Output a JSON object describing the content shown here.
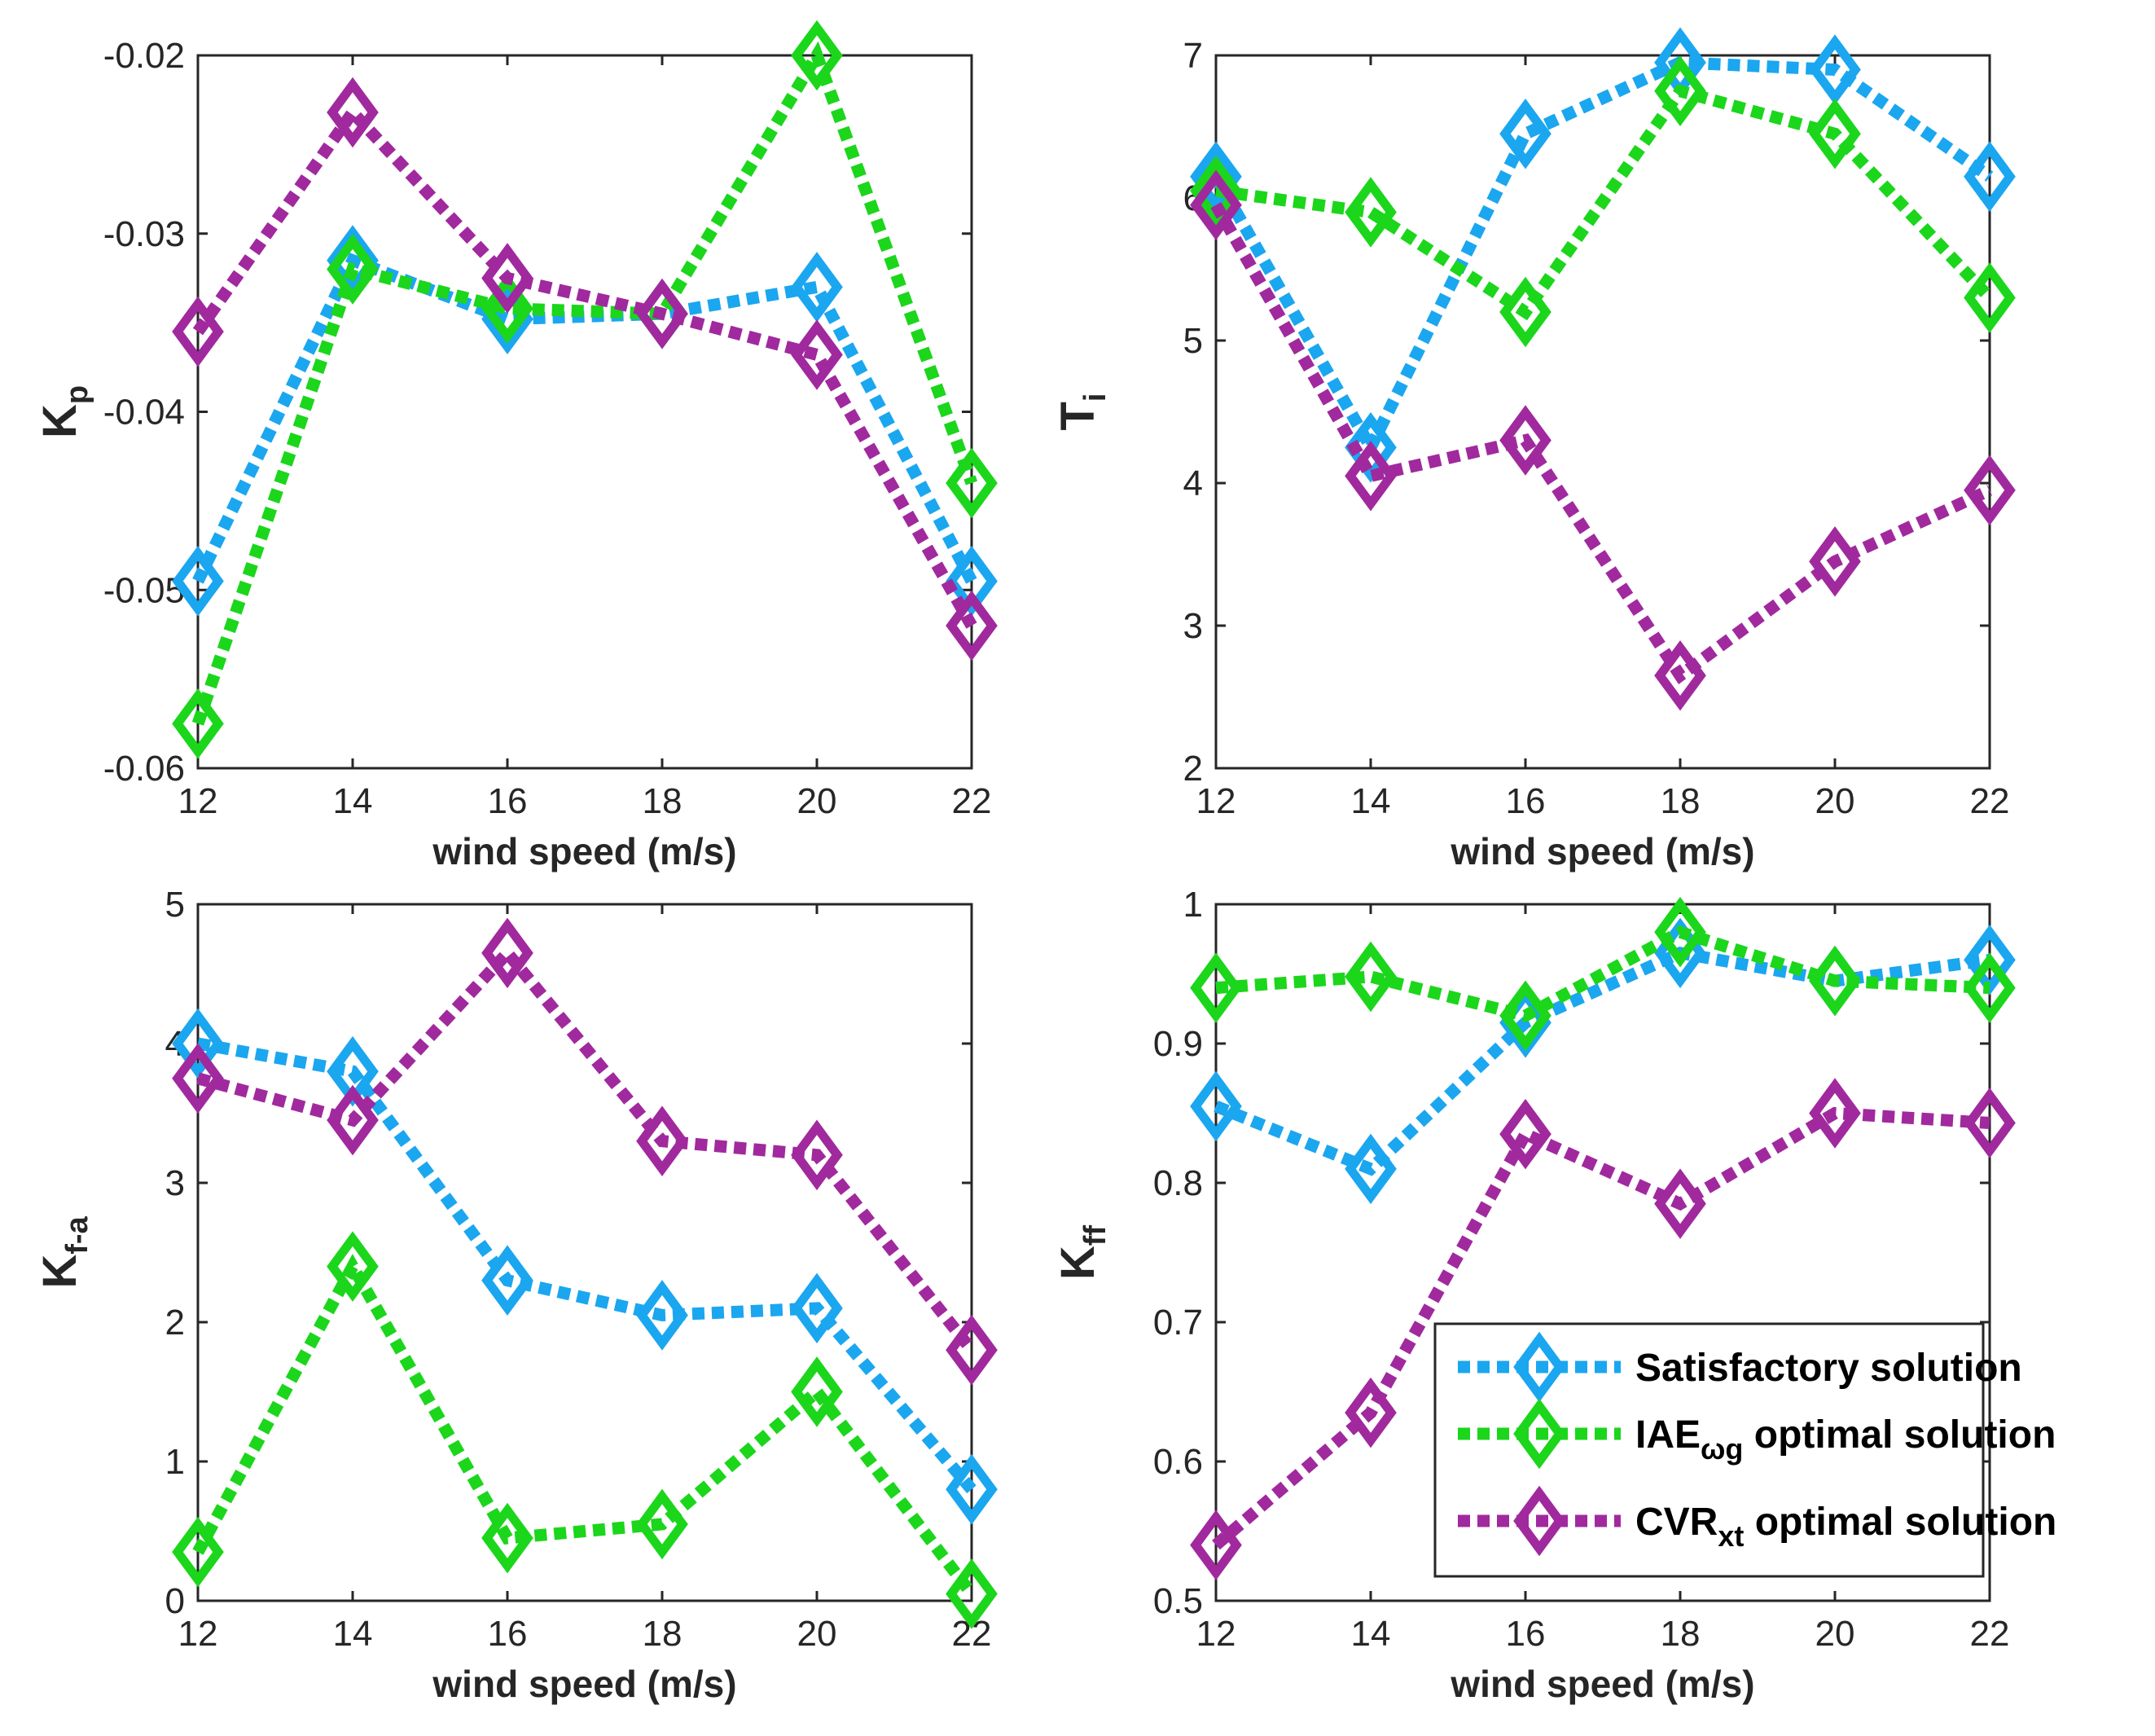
{
  "colors": {
    "satisfactory": "#1ba6f0",
    "iae": "#1bd61b",
    "cvr": "#a1299e",
    "axis": "#262626"
  },
  "legend": {
    "placement": "bottom-right of panel 4",
    "entries": [
      {
        "series": "satisfactory",
        "label": "Satisfactory solution",
        "main": "Satisfactory solution",
        "sub": "",
        "rest": ""
      },
      {
        "series": "iae",
        "label": "IAEωg optimal solution",
        "main": "IAE",
        "sub": "ωg",
        "rest": " optimal solution"
      },
      {
        "series": "cvr",
        "label": "CVRxt optimal solution",
        "main": "CVR",
        "sub": "xt",
        "rest": " optimal solution"
      }
    ]
  },
  "chart_data": [
    {
      "type": "line",
      "xlabel": "wind speed (m/s)",
      "ylabel": {
        "main": "K",
        "sub": "p"
      },
      "x": [
        12,
        14,
        16,
        18,
        20,
        22
      ],
      "xlim": [
        12,
        22
      ],
      "ylim": [
        -0.06,
        -0.02
      ],
      "xticks": [
        12,
        14,
        16,
        18,
        20,
        22
      ],
      "yticks": [
        -0.06,
        -0.05,
        -0.04,
        -0.03,
        -0.02
      ],
      "yticklabels": [
        "-0.06",
        "-0.05",
        "-0.04",
        "-0.03",
        "-0.02"
      ],
      "series": [
        {
          "key": "satisfactory",
          "name": "Satisfactory solution",
          "values": [
            -0.0495,
            -0.0315,
            -0.0348,
            -0.0345,
            -0.033,
            -0.0495
          ]
        },
        {
          "key": "iae",
          "name": "IAEωg optimal solution",
          "values": [
            -0.0575,
            -0.032,
            -0.0342,
            -0.0345,
            -0.02,
            -0.044
          ]
        },
        {
          "key": "cvr",
          "name": "CVRxt optimal solution",
          "values": [
            -0.0355,
            -0.0232,
            -0.0325,
            -0.0345,
            -0.0368,
            -0.052
          ]
        }
      ]
    },
    {
      "type": "line",
      "xlabel": "wind speed (m/s)",
      "ylabel": {
        "main": "T",
        "sub": "i"
      },
      "x": [
        12,
        14,
        16,
        18,
        20,
        22
      ],
      "xlim": [
        12,
        22
      ],
      "ylim": [
        2,
        7
      ],
      "xticks": [
        12,
        14,
        16,
        18,
        20,
        22
      ],
      "yticks": [
        2,
        3,
        4,
        5,
        6,
        7
      ],
      "yticklabels": [
        "2",
        "3",
        "4",
        "5",
        "6",
        "7"
      ],
      "series": [
        {
          "key": "satisfactory",
          "name": "Satisfactory solution",
          "values": [
            6.15,
            4.25,
            6.45,
            6.95,
            6.9,
            6.15
          ]
        },
        {
          "key": "iae",
          "name": "IAEωg optimal solution",
          "values": [
            6.05,
            5.9,
            5.2,
            6.75,
            6.45,
            5.3
          ]
        },
        {
          "key": "cvr",
          "name": "CVRxt optimal solution",
          "values": [
            5.95,
            4.05,
            4.3,
            2.65,
            3.45,
            3.95
          ]
        }
      ]
    },
    {
      "type": "line",
      "xlabel": "wind speed (m/s)",
      "ylabel": {
        "main": "K",
        "sub": "f-a"
      },
      "x": [
        12,
        14,
        16,
        18,
        20,
        22
      ],
      "xlim": [
        12,
        22
      ],
      "ylim": [
        0,
        5
      ],
      "xticks": [
        12,
        14,
        16,
        18,
        20,
        22
      ],
      "yticks": [
        0,
        1,
        2,
        3,
        4,
        5
      ],
      "yticklabels": [
        "0",
        "1",
        "2",
        "3",
        "4",
        "5"
      ],
      "series": [
        {
          "key": "satisfactory",
          "name": "Satisfactory solution",
          "values": [
            4.0,
            3.8,
            2.3,
            2.05,
            2.1,
            0.8
          ]
        },
        {
          "key": "iae",
          "name": "IAEωg optimal solution",
          "values": [
            0.35,
            2.4,
            0.45,
            0.55,
            1.5,
            0.05
          ]
        },
        {
          "key": "cvr",
          "name": "CVRxt optimal solution",
          "values": [
            3.75,
            3.45,
            4.65,
            3.3,
            3.2,
            1.8
          ]
        }
      ]
    },
    {
      "type": "line",
      "xlabel": "wind speed (m/s)",
      "ylabel": {
        "main": "K",
        "sub": "ff"
      },
      "x": [
        12,
        14,
        16,
        18,
        20,
        22
      ],
      "xlim": [
        12,
        22
      ],
      "ylim": [
        0.5,
        1
      ],
      "xticks": [
        12,
        14,
        16,
        18,
        20,
        22
      ],
      "yticks": [
        0.5,
        0.6,
        0.7,
        0.8,
        0.9,
        1.0
      ],
      "yticklabels": [
        "0.5",
        "0.6",
        "0.7",
        "0.8",
        "0.9",
        "1"
      ],
      "series": [
        {
          "key": "satisfactory",
          "name": "Satisfactory solution",
          "values": [
            0.855,
            0.81,
            0.915,
            0.965,
            0.945,
            0.96
          ]
        },
        {
          "key": "iae",
          "name": "IAEωg optimal solution",
          "values": [
            0.94,
            0.948,
            0.92,
            0.98,
            0.945,
            0.94
          ]
        },
        {
          "key": "cvr",
          "name": "CVRxt optimal solution",
          "values": [
            0.54,
            0.635,
            0.835,
            0.785,
            0.85,
            0.843
          ]
        }
      ]
    }
  ]
}
